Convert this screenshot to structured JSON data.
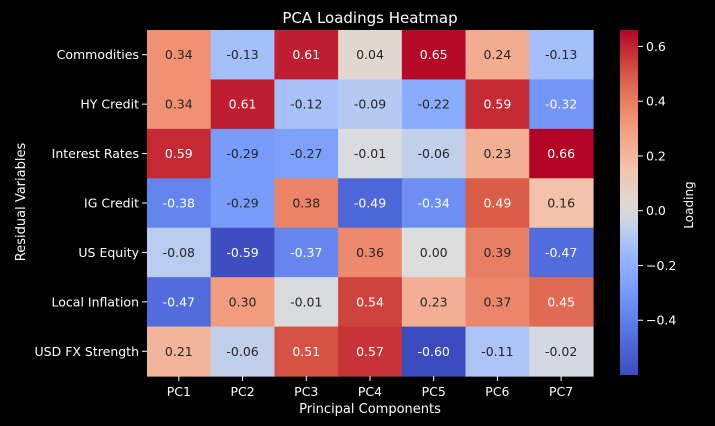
{
  "chart_data": {
    "type": "heatmap",
    "title": "PCA Loadings Heatmap",
    "xlabel": "Principal Components",
    "ylabel": "Residual Variables",
    "columns": [
      "PC1",
      "PC2",
      "PC3",
      "PC4",
      "PC5",
      "PC6",
      "PC7"
    ],
    "rows": [
      "Commodities",
      "HY Credit",
      "Interest Rates",
      "IG Credit",
      "US Equity",
      "Local Inflation",
      "USD FX Strength"
    ],
    "values": [
      [
        0.34,
        -0.13,
        0.61,
        0.04,
        0.65,
        0.24,
        -0.13
      ],
      [
        0.34,
        0.61,
        -0.12,
        -0.09,
        -0.22,
        0.59,
        -0.32
      ],
      [
        0.59,
        -0.29,
        -0.27,
        -0.01,
        -0.06,
        0.23,
        0.66
      ],
      [
        -0.38,
        -0.29,
        0.38,
        -0.49,
        -0.34,
        0.49,
        0.16
      ],
      [
        -0.08,
        -0.59,
        -0.37,
        0.36,
        0.0,
        0.39,
        -0.47
      ],
      [
        -0.47,
        0.3,
        -0.01,
        0.54,
        0.23,
        0.37,
        0.45
      ],
      [
        0.21,
        -0.06,
        0.51,
        0.57,
        -0.6,
        -0.11,
        -0.02
      ]
    ],
    "value_range": [
      -0.6,
      0.66
    ],
    "colormap": "coolwarm",
    "colorbar": {
      "label": "Loading",
      "ticks": [
        -0.4,
        -0.2,
        0.0,
        0.2,
        0.4,
        0.6
      ],
      "tick_labels": [
        "−0.4",
        "−0.2",
        "0.0",
        "0.2",
        "0.4",
        "0.6"
      ]
    },
    "annotate": true
  },
  "colors": {
    "background": "#000000",
    "text": "#ffffff",
    "cold": "#3b4cc0",
    "neutral": "#dddddd",
    "warm": "#b40426"
  }
}
